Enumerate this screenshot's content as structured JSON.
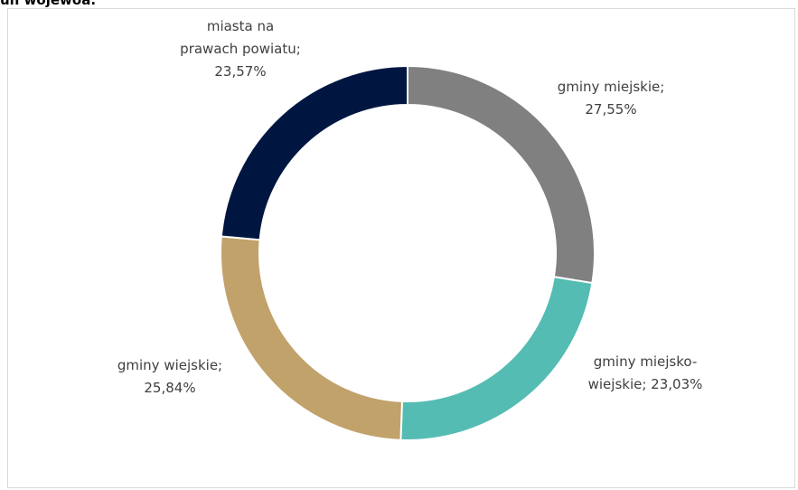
{
  "caption": "un wojewoa.",
  "chart_data": {
    "type": "pie",
    "title": "",
    "categories": [
      "gminy miejskie",
      "gminy miejsko-wiejskie",
      "gminy wiejskie",
      "miasta na prawach powiatu"
    ],
    "values": [
      27.55,
      23.03,
      25.84,
      23.57
    ],
    "unit": "%",
    "colors": [
      "#808080",
      "#54bcb3",
      "#c1a26b",
      "#001641"
    ],
    "donut": true,
    "legend": "none",
    "labels": [
      {
        "lines": [
          "gminy miejskie;",
          "27,55%"
        ]
      },
      {
        "lines": [
          "gminy miejsko-",
          "wiejskie; 23,03%"
        ]
      },
      {
        "lines": [
          "gminy wiejskie;",
          "25,84%"
        ]
      },
      {
        "lines": [
          "miasta na",
          "prawach powiatu;",
          "23,57%"
        ]
      }
    ]
  }
}
